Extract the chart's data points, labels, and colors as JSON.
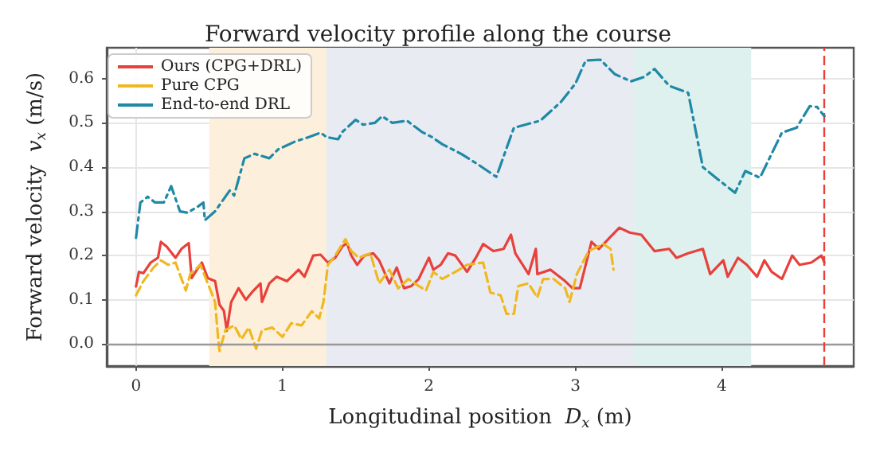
{
  "chart_data": {
    "type": "line",
    "title": "Forward velocity profile along the course",
    "xlabel": "Longitudinal position  D$_{x}$ (m)",
    "ylabel": "Forward velocity  v$_{x}$ (m/s)",
    "xlim": [
      -0.2,
      4.9
    ],
    "xticks": [
      0,
      1,
      2,
      3,
      4
    ],
    "ylim": [
      -0.05,
      0.67
    ],
    "yticks": [
      {
        "value": 0,
        "label": "0.0"
      },
      0.1,
      0.2,
      0.3,
      0.4,
      0.5,
      0.6
    ],
    "grid": true,
    "legend": "top left",
    "marker": "none",
    "series": [
      {
        "name": "Ours (CPG+DRL)",
        "color": "#e8413b",
        "line_style": "solid",
        "x": [
          0,
          0.02,
          0.05,
          0.1,
          0.15,
          0.17,
          0.21,
          0.27,
          0.31,
          0.36,
          0.38,
          0.42,
          0.45,
          0.49,
          0.54,
          0.57,
          0.6,
          0.62,
          0.65,
          0.7,
          0.75,
          0.8,
          0.85,
          0.86,
          0.91,
          0.96,
          1.03,
          1.08,
          1.11,
          1.15,
          1.21,
          1.26,
          1.31,
          1.36,
          1.41,
          1.44,
          1.47,
          1.51,
          1.56,
          1.62,
          1.66,
          1.73,
          1.78,
          1.83,
          1.88,
          1.93,
          2.0,
          2.03,
          2.08,
          2.13,
          2.18,
          2.26,
          2.32,
          2.37,
          2.44,
          2.51,
          2.56,
          2.59,
          2.68,
          2.73,
          2.74,
          2.83,
          2.93,
          2.98,
          3.03,
          3.11,
          3.16,
          3.3,
          3.37,
          3.45,
          3.54,
          3.64,
          3.69,
          3.77,
          3.87,
          3.92,
          4.01,
          4.04,
          4.11,
          4.17,
          4.24,
          4.29,
          4.34,
          4.41,
          4.48,
          4.53,
          4.61,
          4.68,
          4.7
        ],
        "values": [
          0.13,
          0.163,
          0.16,
          0.184,
          0.195,
          0.231,
          0.22,
          0.195,
          0.215,
          0.228,
          0.149,
          0.17,
          0.184,
          0.149,
          0.142,
          0.089,
          0.075,
          0.03,
          0.095,
          0.126,
          0.1,
          0.12,
          0.137,
          0.095,
          0.137,
          0.152,
          0.142,
          0.158,
          0.168,
          0.152,
          0.2,
          0.202,
          0.184,
          0.195,
          0.221,
          0.228,
          0.2,
          0.179,
          0.2,
          0.205,
          0.189,
          0.137,
          0.173,
          0.126,
          0.131,
          0.147,
          0.195,
          0.168,
          0.179,
          0.205,
          0.2,
          0.163,
          0.195,
          0.226,
          0.21,
          0.215,
          0.247,
          0.205,
          0.158,
          0.215,
          0.158,
          0.168,
          0.142,
          0.126,
          0.126,
          0.231,
          0.215,
          0.263,
          0.252,
          0.247,
          0.21,
          0.215,
          0.195,
          0.205,
          0.215,
          0.158,
          0.189,
          0.152,
          0.195,
          0.179,
          0.152,
          0.189,
          0.163,
          0.147,
          0.2,
          0.179,
          0.184,
          0.2,
          0.184
        ]
      },
      {
        "name": "Pure CPG",
        "color": "#f0b820",
        "line_style": "dashed",
        "x": [
          0,
          0.05,
          0.12,
          0.17,
          0.22,
          0.27,
          0.34,
          0.37,
          0.44,
          0.49,
          0.54,
          0.56,
          0.57,
          0.61,
          0.67,
          0.72,
          0.77,
          0.82,
          0.86,
          0.93,
          1.0,
          1.06,
          1.13,
          1.2,
          1.25,
          1.28,
          1.31,
          1.36,
          1.43,
          1.47,
          1.52,
          1.6,
          1.66,
          1.73,
          1.79,
          1.86,
          1.93,
          1.98,
          2.03,
          2.09,
          2.18,
          2.26,
          2.37,
          2.42,
          2.49,
          2.53,
          2.58,
          2.61,
          2.68,
          2.74,
          2.78,
          2.85,
          2.93,
          2.96,
          3.01,
          3.09,
          3.19,
          3.24,
          3.26
        ],
        "values": [
          0.11,
          0.142,
          0.173,
          0.189,
          0.179,
          0.184,
          0.121,
          0.158,
          0.179,
          0.137,
          0.095,
          0.016,
          -0.016,
          0.031,
          0.042,
          0.011,
          0.037,
          -0.011,
          0.031,
          0.037,
          0.016,
          0.047,
          0.042,
          0.074,
          0.058,
          0.095,
          0.179,
          0.2,
          0.237,
          0.21,
          0.195,
          0.205,
          0.137,
          0.168,
          0.126,
          0.147,
          0.131,
          0.121,
          0.163,
          0.147,
          0.163,
          0.179,
          0.184,
          0.116,
          0.11,
          0.068,
          0.068,
          0.131,
          0.137,
          0.105,
          0.147,
          0.147,
          0.126,
          0.095,
          0.158,
          0.21,
          0.226,
          0.215,
          0.168
        ]
      },
      {
        "name": "End-to-end DRL",
        "color": "#1f89a6",
        "line_style": "dashdot",
        "x": [
          0,
          0.03,
          0.08,
          0.13,
          0.19,
          0.24,
          0.3,
          0.35,
          0.42,
          0.46,
          0.47,
          0.54,
          0.64,
          0.67,
          0.74,
          0.81,
          0.91,
          0.97,
          1.08,
          1.18,
          1.26,
          1.3,
          1.38,
          1.41,
          1.5,
          1.55,
          1.63,
          1.68,
          1.75,
          1.85,
          1.95,
          2.02,
          2.09,
          2.22,
          2.34,
          2.46,
          2.58,
          2.76,
          2.9,
          3.0,
          3.07,
          3.17,
          3.27,
          3.38,
          3.47,
          3.54,
          3.64,
          3.77,
          3.87,
          3.97,
          4.09,
          4.16,
          4.26,
          4.41,
          4.51,
          4.6,
          4.65,
          4.7
        ],
        "values": [
          0.24,
          0.32,
          0.333,
          0.32,
          0.32,
          0.357,
          0.3,
          0.297,
          0.31,
          0.32,
          0.28,
          0.3,
          0.347,
          0.336,
          0.42,
          0.43,
          0.42,
          0.44,
          0.457,
          0.468,
          0.478,
          0.468,
          0.463,
          0.48,
          0.507,
          0.496,
          0.5,
          0.515,
          0.5,
          0.505,
          0.48,
          0.468,
          0.452,
          0.43,
          0.405,
          0.378,
          0.489,
          0.505,
          0.547,
          0.589,
          0.641,
          0.643,
          0.61,
          0.594,
          0.604,
          0.622,
          0.584,
          0.568,
          0.4,
          0.373,
          0.342,
          0.391,
          0.376,
          0.478,
          0.489,
          0.538,
          0.536,
          0.515
        ]
      }
    ],
    "bands": [
      {
        "axis": "x",
        "from": 0.5,
        "to": 1.3,
        "color": "#fcefdc"
      },
      {
        "axis": "x",
        "from": 1.3,
        "to": 3.4,
        "color": "#e8ebf2"
      },
      {
        "axis": "x",
        "from": 3.4,
        "to": 4.2,
        "color": "#dff1ee"
      }
    ],
    "ref_lines": [
      {
        "axis": "y",
        "value": 0,
        "color": "#999999",
        "line_style": "solid"
      },
      {
        "axis": "x",
        "value": 4.7,
        "color": "#e8413b",
        "line_style": "dashed"
      }
    ]
  }
}
